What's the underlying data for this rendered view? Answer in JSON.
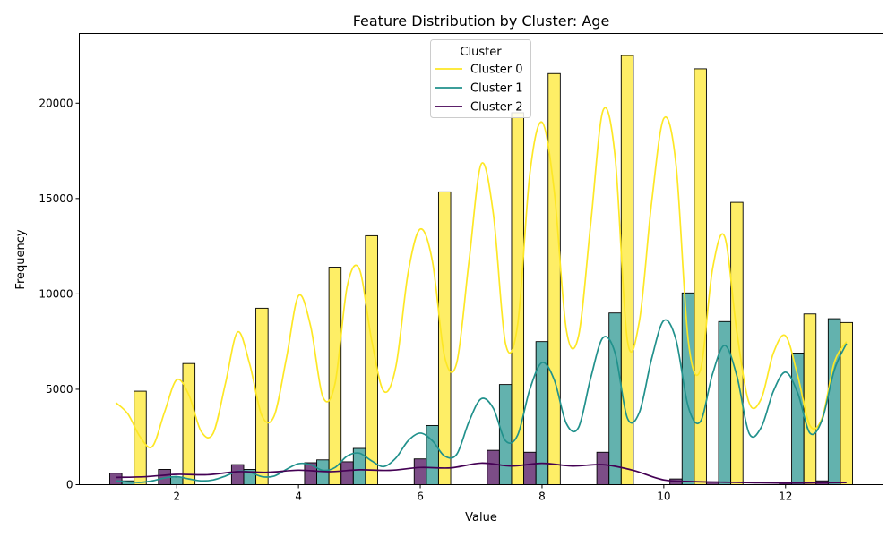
{
  "chart_data": {
    "type": "bar",
    "title": "Feature Distribution by Cluster: Age",
    "xlabel": "Value",
    "ylabel": "Frequency",
    "xlim": [
      0.4,
      13.6
    ],
    "ylim": [
      0,
      23650
    ],
    "xticks": [
      "2",
      "4",
      "6",
      "8",
      "10",
      "12"
    ],
    "yticks": [
      "0",
      "5000",
      "10000",
      "15000",
      "20000"
    ],
    "legend": {
      "title": "Cluster",
      "placement": "top-center"
    },
    "grid": false,
    "colors": {
      "Cluster 0": "#fde725",
      "Cluster 1": "#21918c",
      "Cluster 2": "#440154"
    },
    "bins": [
      1.2,
      2.0,
      3.2,
      4.4,
      5.0,
      6.2,
      7.4,
      8.0,
      9.2,
      10.4,
      11.0,
      12.2,
      12.8
    ],
    "bar_width": 0.2,
    "series": [
      {
        "name": "Cluster 0",
        "values": [
          4900,
          6350,
          9250,
          11400,
          13050,
          15350,
          19500,
          21550,
          22500,
          21800,
          14800,
          8950,
          8500
        ]
      },
      {
        "name": "Cluster 1",
        "values": [
          200,
          400,
          800,
          1300,
          1900,
          3100,
          5250,
          7500,
          9000,
          10050,
          8550,
          6900,
          8700
        ]
      },
      {
        "name": "Cluster 2",
        "values": [
          600,
          800,
          1050,
          1150,
          1200,
          1350,
          1800,
          1700,
          1700,
          300,
          150,
          100,
          200
        ]
      }
    ],
    "kde": [
      {
        "name": "Cluster 0",
        "x": [
          1.0,
          1.2,
          1.4,
          1.6,
          1.8,
          2.0,
          2.2,
          2.4,
          2.6,
          2.8,
          3.0,
          3.2,
          3.4,
          3.6,
          3.8,
          4.0,
          4.2,
          4.4,
          4.6,
          4.8,
          5.0,
          5.2,
          5.4,
          5.6,
          5.8,
          6.0,
          6.2,
          6.4,
          6.6,
          6.8,
          7.0,
          7.2,
          7.4,
          7.6,
          7.8,
          8.0,
          8.2,
          8.4,
          8.6,
          8.8,
          9.0,
          9.2,
          9.4,
          9.6,
          9.8,
          10.0,
          10.2,
          10.4,
          10.6,
          10.8,
          11.0,
          11.2,
          11.4,
          11.6,
          11.8,
          12.0,
          12.2,
          12.4,
          12.6,
          12.8,
          13.0
        ],
        "y": [
          4300,
          3700,
          2500,
          2000,
          3800,
          5500,
          4700,
          2800,
          2700,
          5300,
          8000,
          6300,
          3600,
          3600,
          6600,
          9900,
          8300,
          4600,
          5300,
          10400,
          11300,
          7600,
          4900,
          6200,
          11100,
          13400,
          11700,
          6700,
          6400,
          11700,
          16800,
          14200,
          7400,
          8400,
          16300,
          19000,
          15400,
          8100,
          7800,
          13700,
          19600,
          17200,
          7600,
          8600,
          14800,
          19200,
          16800,
          7600,
          6000,
          11300,
          13000,
          8000,
          4300,
          4500,
          6900,
          7800,
          5700,
          3100,
          3500,
          6400,
          7500
        ]
      },
      {
        "name": "Cluster 1",
        "x": [
          1.0,
          1.2,
          1.4,
          1.6,
          1.8,
          2.0,
          2.2,
          2.4,
          2.6,
          2.8,
          3.0,
          3.2,
          3.4,
          3.6,
          3.8,
          4.0,
          4.2,
          4.4,
          4.6,
          4.8,
          5.0,
          5.2,
          5.4,
          5.6,
          5.8,
          6.0,
          6.2,
          6.4,
          6.6,
          6.8,
          7.0,
          7.2,
          7.4,
          7.6,
          7.8,
          8.0,
          8.2,
          8.4,
          8.6,
          8.8,
          9.0,
          9.2,
          9.4,
          9.6,
          9.8,
          10.0,
          10.2,
          10.4,
          10.6,
          10.8,
          11.0,
          11.2,
          11.4,
          11.6,
          11.8,
          12.0,
          12.2,
          12.4,
          12.6,
          12.8,
          13.0
        ],
        "y": [
          200,
          150,
          120,
          200,
          350,
          420,
          300,
          200,
          250,
          450,
          700,
          650,
          420,
          450,
          800,
          1100,
          1050,
          750,
          900,
          1500,
          1650,
          1250,
          950,
          1400,
          2300,
          2700,
          2300,
          1500,
          1600,
          3300,
          4500,
          4000,
          2300,
          2600,
          5000,
          6400,
          5500,
          3200,
          3000,
          5600,
          7700,
          6900,
          3500,
          3800,
          6600,
          8600,
          7600,
          4100,
          3300,
          5800,
          7300,
          5700,
          2700,
          3000,
          4900,
          5900,
          4800,
          2700,
          3400,
          6000,
          7400
        ]
      },
      {
        "name": "Cluster 2",
        "x": [
          1.0,
          1.5,
          2.0,
          2.5,
          3.0,
          3.5,
          4.0,
          4.5,
          5.0,
          5.5,
          6.0,
          6.5,
          7.0,
          7.5,
          8.0,
          8.5,
          9.0,
          9.5,
          10.0,
          10.5,
          11.0,
          11.5,
          12.0,
          12.5,
          13.0
        ],
        "y": [
          380,
          420,
          540,
          520,
          680,
          650,
          760,
          680,
          780,
          750,
          900,
          880,
          1130,
          980,
          1120,
          980,
          1050,
          750,
          250,
          160,
          130,
          100,
          80,
          90,
          110
        ]
      }
    ]
  }
}
